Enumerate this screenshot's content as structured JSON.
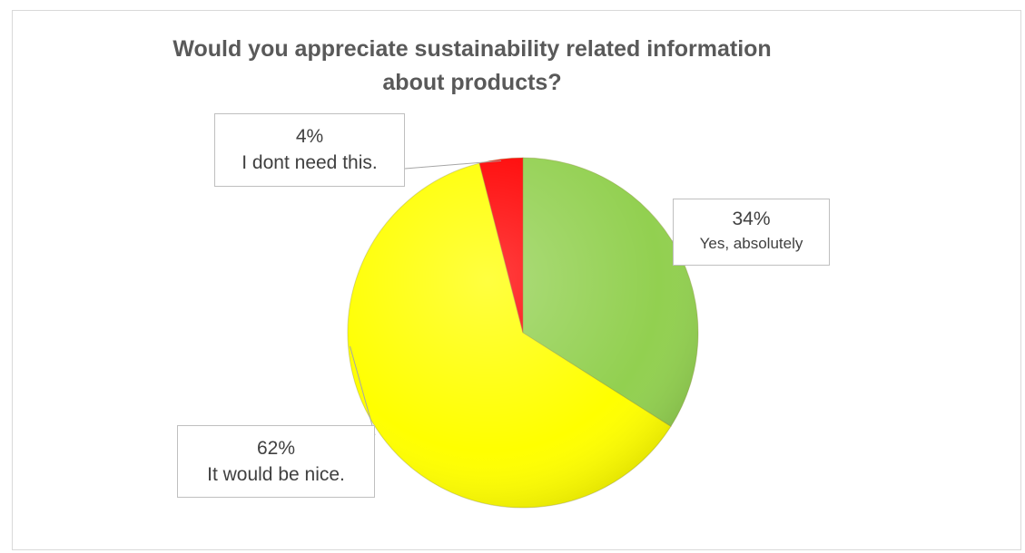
{
  "chart_data": {
    "type": "pie",
    "title": "Would you appreciate sustainability related information about products?",
    "slices": [
      {
        "label": "Yes, absolutely",
        "value": 34,
        "percent_label": "34%",
        "color": "#92d050"
      },
      {
        "label": "It would be nice.",
        "value": 62,
        "percent_label": "62%",
        "color": "#ffff00"
      },
      {
        "label": "I dont need this.",
        "value": 4,
        "percent_label": "4%",
        "color": "#ff0000"
      }
    ],
    "start_angle": "12 o'clock",
    "direction": "clockwise",
    "legend": "none"
  }
}
